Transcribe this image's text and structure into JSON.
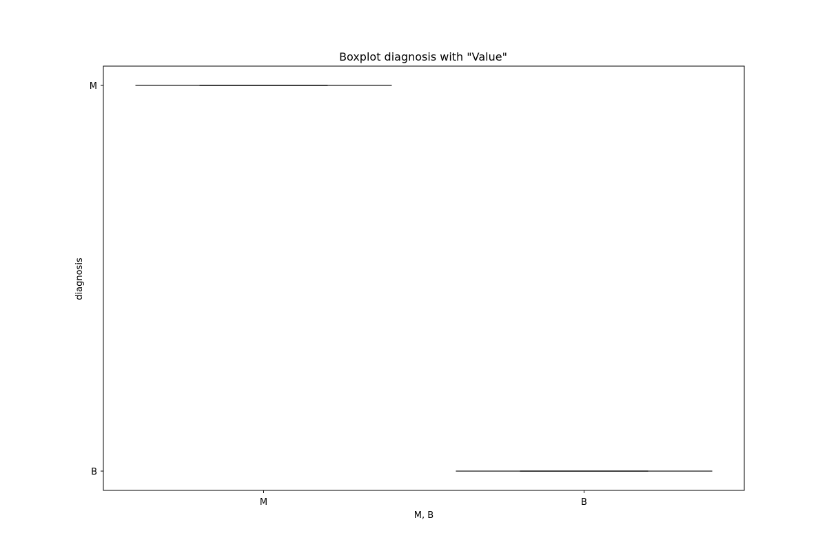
{
  "chart_data": {
    "type": "boxplot",
    "title": "Boxplot diagnosis with \"Value\"",
    "xlabel": "M, B",
    "ylabel": "diagnosis",
    "x_categories": [
      "M",
      "B"
    ],
    "y_categories": [
      "M",
      "B"
    ],
    "series": [
      {
        "x": "M",
        "y": "M"
      },
      {
        "x": "B",
        "y": "B"
      }
    ],
    "grid": false,
    "legend": "none",
    "colors": {
      "box_line": "#3f3f3f",
      "axes": "#000000",
      "background": "#ffffff"
    }
  }
}
